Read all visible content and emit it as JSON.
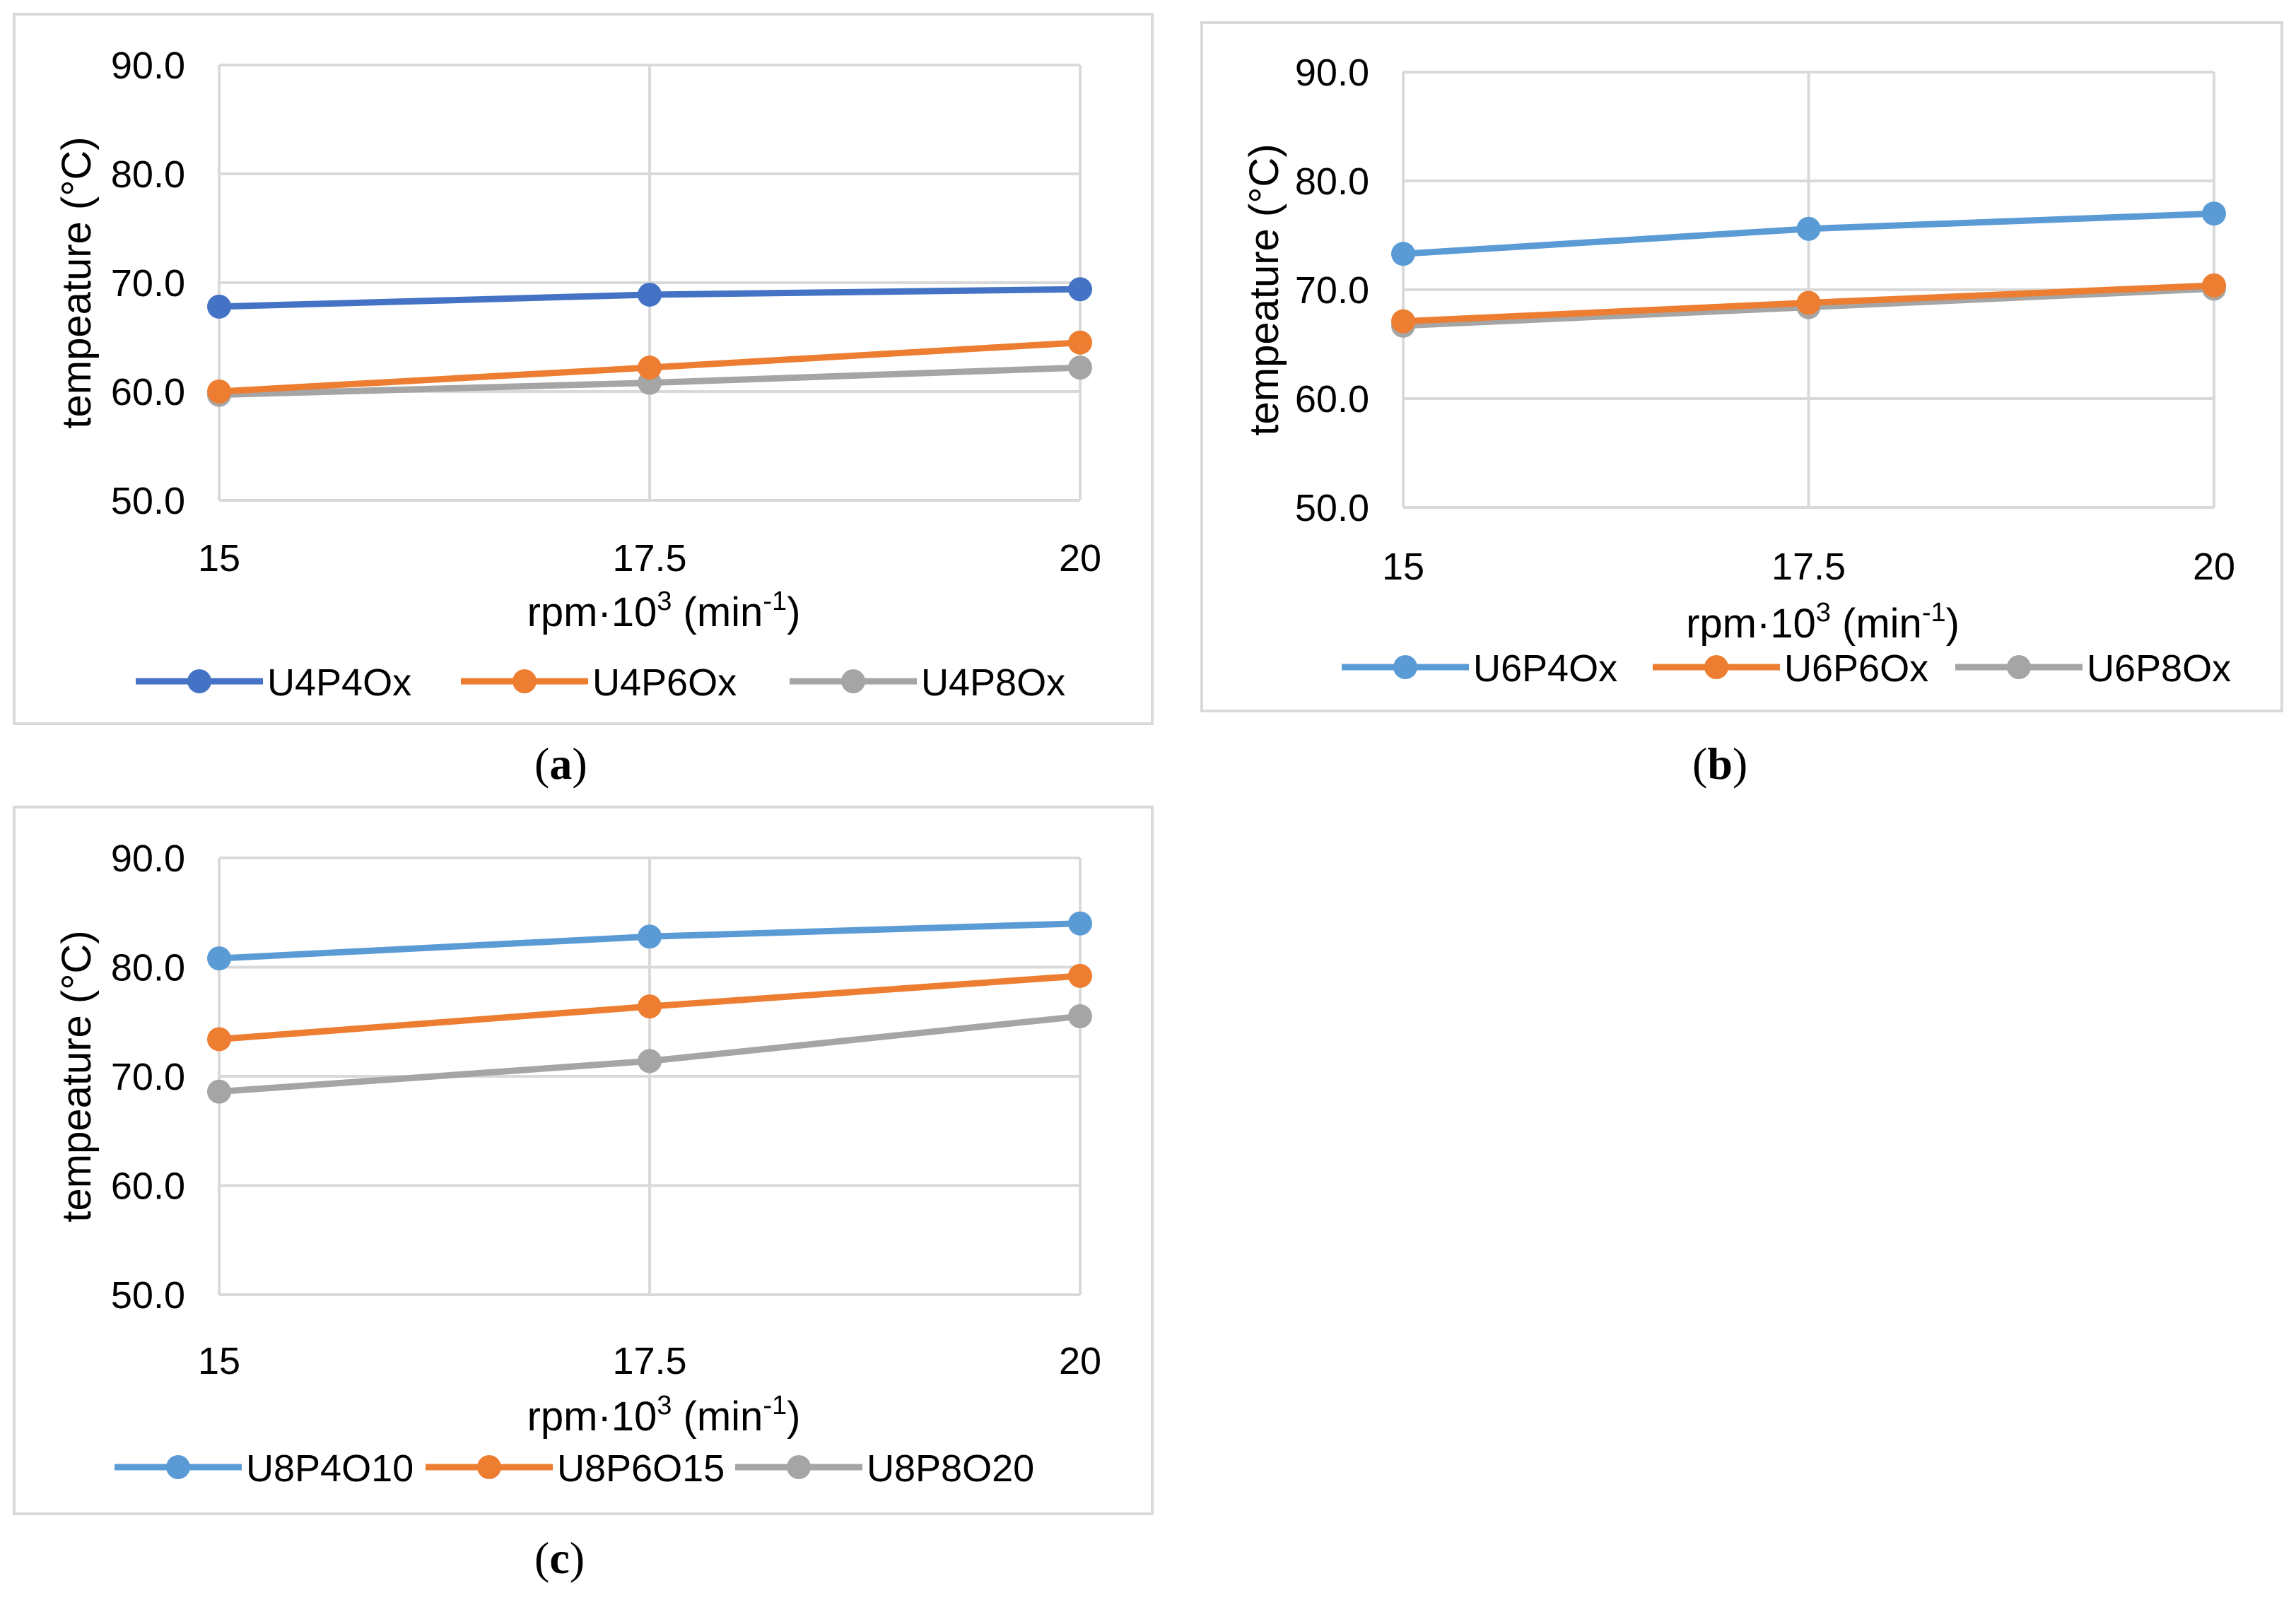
{
  "chart_data": [
    {
      "panel": "a",
      "caption_letter": "a",
      "type": "line",
      "ylabel": "tempeature (°C)",
      "xlabel": {
        "base": "rpm·10",
        "exp": "3",
        "unit_open": " (min",
        "unit_exp": "-1",
        "unit_close": ")"
      },
      "x": [
        15,
        17.5,
        20
      ],
      "x_tick_labels": [
        "15",
        "17.5",
        "20"
      ],
      "y_tick_labels": [
        "50.0",
        "60.0",
        "70.0",
        "80.0",
        "90.0"
      ],
      "ylim": [
        50,
        90
      ],
      "grid": true,
      "legend_position": "bottom",
      "series": [
        {
          "name": "U4P4Ox",
          "color": "#4472c4",
          "values": [
            67.8,
            68.9,
            69.4
          ]
        },
        {
          "name": "U4P6Ox",
          "color": "#ed7d31",
          "values": [
            60.0,
            62.2,
            64.5
          ]
        },
        {
          "name": "U4P8Ox",
          "color": "#a5a5a5",
          "values": [
            59.7,
            60.8,
            62.2
          ]
        }
      ]
    },
    {
      "panel": "b",
      "caption_letter": "b",
      "type": "line",
      "ylabel": "tempeature (°C)",
      "xlabel": {
        "base": "rpm·10",
        "exp": "3",
        "unit_open": " (min",
        "unit_exp": "-1",
        "unit_close": ")"
      },
      "x": [
        15,
        17.5,
        20
      ],
      "x_tick_labels": [
        "15",
        "17.5",
        "20"
      ],
      "y_tick_labels": [
        "50.0",
        "60.0",
        "70.0",
        "80.0",
        "90.0"
      ],
      "ylim": [
        50,
        90
      ],
      "grid": true,
      "legend_position": "bottom",
      "series": [
        {
          "name": "U6P4Ox",
          "color": "#5b9bd5",
          "values": [
            73.3,
            75.6,
            77.0
          ]
        },
        {
          "name": "U6P6Ox",
          "color": "#ed7d31",
          "values": [
            67.1,
            68.8,
            70.4
          ]
        },
        {
          "name": "U6P8Ox",
          "color": "#a5a5a5",
          "values": [
            66.7,
            68.4,
            70.1
          ]
        }
      ]
    },
    {
      "panel": "c",
      "caption_letter": "c",
      "type": "line",
      "ylabel": "tempeature (°C)",
      "xlabel": {
        "base": "rpm·10",
        "exp": "3",
        "unit_open": " (min",
        "unit_exp": "-1",
        "unit_close": ")"
      },
      "x": [
        15,
        17.5,
        20
      ],
      "x_tick_labels": [
        "15",
        "17.5",
        "20"
      ],
      "y_tick_labels": [
        "50.0",
        "60.0",
        "70.0",
        "80.0",
        "90.0"
      ],
      "ylim": [
        50,
        90
      ],
      "grid": true,
      "legend_position": "bottom",
      "series": [
        {
          "name": "U8P4O10",
          "color": "#5b9bd5",
          "values": [
            80.8,
            82.8,
            84.0
          ]
        },
        {
          "name": "U8P6O15",
          "color": "#ed7d31",
          "values": [
            73.4,
            76.4,
            79.2
          ]
        },
        {
          "name": "U8P8O20",
          "color": "#a5a5a5",
          "values": [
            68.6,
            71.4,
            75.5
          ]
        }
      ]
    }
  ]
}
